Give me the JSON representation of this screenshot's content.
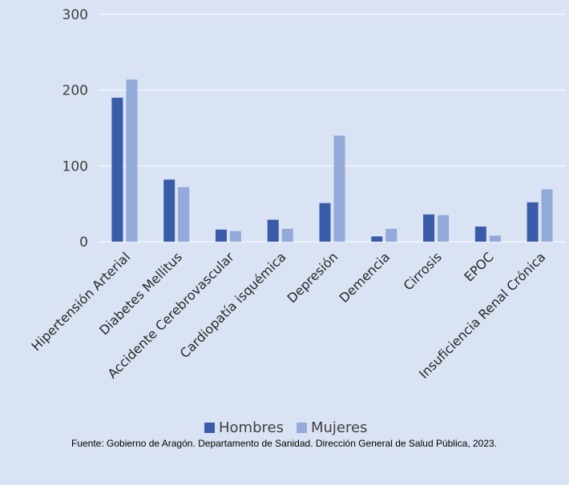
{
  "chart_data": {
    "type": "bar",
    "categories": [
      "Hipertensión Arterial",
      "Diabetes Mellitus",
      "Accidente Cerebrovascular",
      "Cardiopatía isquémica",
      "Depresión",
      "Demencia",
      "Cirrosis",
      "EPOC",
      "Insuficiencia Renal Crónica"
    ],
    "series": [
      {
        "name": "Hombres",
        "color": "#3a5ca8",
        "values": [
          190,
          82,
          16,
          29,
          51,
          7,
          36,
          20,
          52
        ]
      },
      {
        "name": "Mujeres",
        "color": "#93a9d9",
        "values": [
          214,
          72,
          14,
          17,
          140,
          17,
          35,
          8,
          69
        ]
      }
    ],
    "yticks": [
      0,
      100,
      200,
      300
    ],
    "ylim": [
      0,
      300
    ],
    "grid": true,
    "legend_position": "bottom"
  },
  "source_note": "Fuente: Gobierno de Aragón. Departamento de Sanidad. Dirección General de Salud Pública, 2023."
}
